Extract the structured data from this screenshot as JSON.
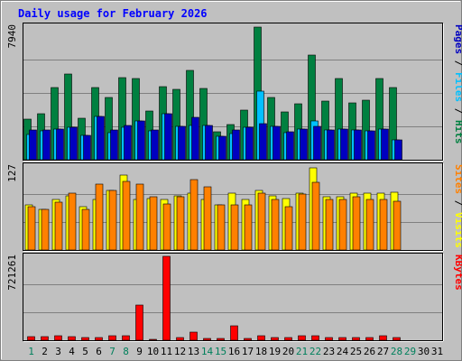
{
  "chart_data": {
    "type": "bar",
    "title": "Daily usage for February 2026",
    "colors": {
      "background": "#C0C0C0",
      "border": "#808080",
      "title": "#0000FF",
      "hits": "#008040",
      "files": "#00C0FF",
      "pages": "#0000C0",
      "visits": "#FFFF00",
      "sites": "#FF8000",
      "kbytes": "#FF0000",
      "weekend_label": "#00805C",
      "weekday_label": "#000000"
    },
    "days": [
      "1",
      "2",
      "3",
      "4",
      "5",
      "6",
      "7",
      "8",
      "9",
      "10",
      "11",
      "12",
      "13",
      "14",
      "15",
      "16",
      "17",
      "18",
      "19",
      "20",
      "21",
      "22",
      "23",
      "24",
      "25",
      "26",
      "27",
      "28",
      "29",
      "30",
      "31"
    ],
    "weekend_days": [
      "1",
      "7",
      "8",
      "14",
      "15",
      "21",
      "22",
      "28",
      "29"
    ],
    "panels": [
      {
        "id": "hits-files-pages",
        "ymax_label": "7940",
        "ymax": 7940,
        "legend": [
          {
            "text": "Hits",
            "color": "#008040"
          },
          {
            "text": "Files",
            "color": "#00C0FF"
          },
          {
            "text": "Pages",
            "color": "#0000C0"
          }
        ],
        "series": [
          {
            "name": "Hits",
            "color": "#008040",
            "values": [
              2400,
              2750,
              4300,
              5100,
              2450,
              4300,
              3700,
              4900,
              4850,
              2900,
              4350,
              4200,
              5300,
              4250,
              1650,
              2100,
              2950,
              7900,
              3700,
              2850,
              3350,
              6250,
              3500,
              4850,
              3400,
              3550,
              4850,
              4300,
              null,
              null,
              null
            ]
          },
          {
            "name": "Files",
            "color": "#00C0FF",
            "values": [
              1500,
              1700,
              1800,
              1950,
              1450,
              2600,
              1600,
              1950,
              2300,
              1700,
              2750,
              2000,
              2050,
              2050,
              1400,
              1550,
              1950,
              4100,
              2000,
              1600,
              1850,
              2300,
              1750,
              1850,
              1750,
              1700,
              1850,
              1200,
              null,
              null,
              null
            ]
          },
          {
            "name": "Pages",
            "color": "#0000C0",
            "values": [
              1750,
              1750,
              1800,
              1950,
              1450,
              2600,
              1750,
              2050,
              2300,
              1750,
              2750,
              2000,
              2500,
              2050,
              1400,
              1750,
              1950,
              2150,
              2000,
              1650,
              1850,
              2000,
              1750,
              1850,
              1750,
              1700,
              1850,
              1200,
              null,
              null,
              null
            ]
          }
        ]
      },
      {
        "id": "visits-sites",
        "ymax_label": "127",
        "ymax": 127,
        "legend": [
          {
            "text": "Visits",
            "color": "#FFFF00"
          },
          {
            "text": "Sites",
            "color": "#FF8000"
          }
        ],
        "series": [
          {
            "name": "Visits",
            "color": "#FFFF00",
            "values": [
              68,
              62,
              76,
              82,
              65,
              76,
              90,
              114,
              76,
              78,
              76,
              82,
              86,
              76,
              68,
              86,
              76,
              90,
              82,
              78,
              86,
              124,
              80,
              80,
              86,
              86,
              86,
              88,
              null,
              null,
              null
            ]
          },
          {
            "name": "Sites",
            "color": "#FF8000",
            "values": [
              66,
              62,
              72,
              86,
              62,
              100,
              90,
              104,
              100,
              80,
              70,
              80,
              106,
              96,
              68,
              68,
              68,
              86,
              76,
              66,
              84,
              102,
              76,
              76,
              80,
              76,
              76,
              74,
              null,
              null,
              null
            ]
          }
        ]
      },
      {
        "id": "kbytes",
        "ymax_label": "721261",
        "ymax": 721261,
        "legend": [
          {
            "text": "KBytes",
            "color": "#FF0000"
          }
        ],
        "series": [
          {
            "name": "KBytes",
            "color": "#FF0000",
            "values": [
              32000,
              32000,
              36000,
              32000,
              22000,
              22000,
              36000,
              36000,
              306000,
              10000,
              721261,
              22000,
              72000,
              18000,
              18000,
              122000,
              18000,
              36000,
              22000,
              22000,
              36000,
              36000,
              22000,
              22000,
              22000,
              22000,
              36000,
              22000,
              null,
              null,
              null
            ]
          }
        ]
      }
    ]
  }
}
